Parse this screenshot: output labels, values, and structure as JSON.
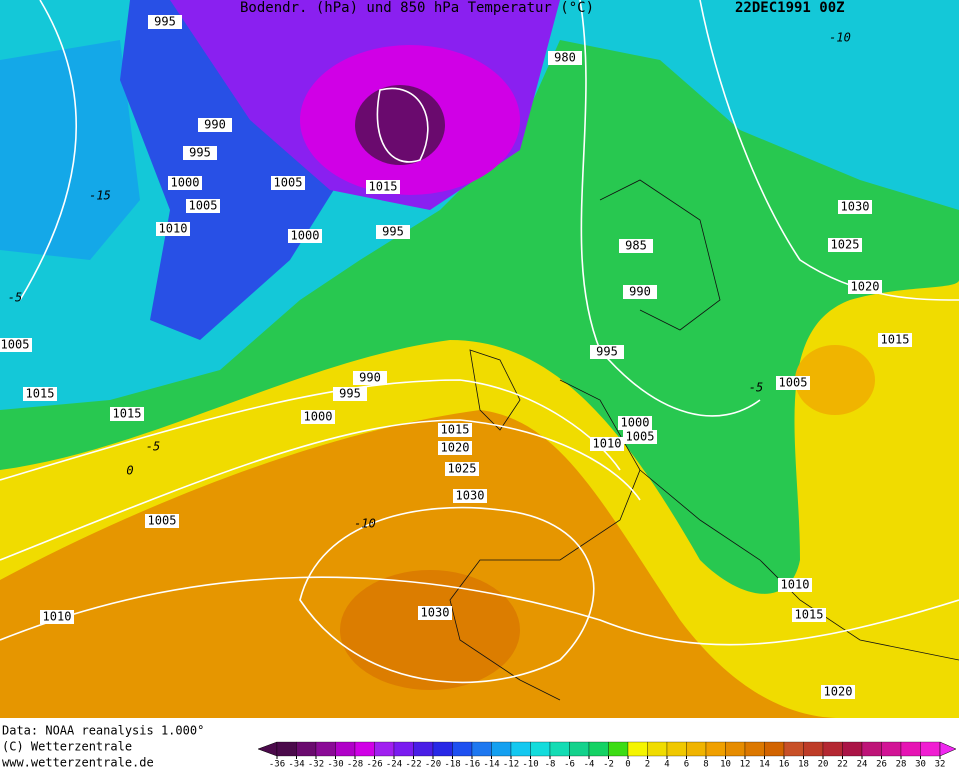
{
  "header": {
    "title": "Bodendr. (hPa) und 850 hPa Temperatur (°C)",
    "date": "22DEC1991 00Z"
  },
  "isobar_labels": [
    995,
    980,
    990,
    995,
    1000,
    1005,
    1005,
    1015,
    1010,
    1000,
    995,
    985,
    1030,
    1025,
    1020,
    990,
    1005,
    1015,
    995,
    990,
    1005,
    995,
    1015,
    1015,
    1000,
    1000,
    1015,
    1010,
    1005,
    1020,
    1025,
    1030,
    1005,
    1010,
    1015,
    1010,
    1030,
    1020
  ],
  "temperature_labels": [
    -10,
    -15,
    -5,
    -5,
    0,
    -10,
    -5
  ],
  "footer": [
    "Data: NOAA reanalysis 1.000°",
    "(C) Wetterzentrale",
    "www.wetterzentrale.de"
  ],
  "colorbar": {
    "ticks": [
      -36,
      -34,
      -32,
      -30,
      -28,
      -26,
      -24,
      -22,
      -20,
      -18,
      -16,
      -14,
      -12,
      -10,
      -8,
      -6,
      -4,
      -2,
      0,
      2,
      4,
      6,
      8,
      10,
      12,
      14,
      16,
      18,
      20,
      22,
      24,
      26,
      28,
      30,
      32
    ],
    "colors": [
      "#4b0a4b",
      "#6a0a6e",
      "#8a0a96",
      "#b000c8",
      "#d000e6",
      "#a020f0",
      "#7a1cf0",
      "#4a1ee6",
      "#2828e6",
      "#1e50f0",
      "#1e78f0",
      "#14a0f0",
      "#14c8f0",
      "#14dcdc",
      "#14dcb4",
      "#14d28c",
      "#14d264",
      "#3cdc14",
      "#f5f500",
      "#f0dc00",
      "#f0c800",
      "#f0b400",
      "#f0a000",
      "#e68c00",
      "#dc7800",
      "#d26400",
      "#c85028",
      "#be3c28",
      "#b42832",
      "#aa1446",
      "#be1478",
      "#d21496",
      "#e614b4",
      "#f01ed2",
      "#f028f0"
    ]
  }
}
